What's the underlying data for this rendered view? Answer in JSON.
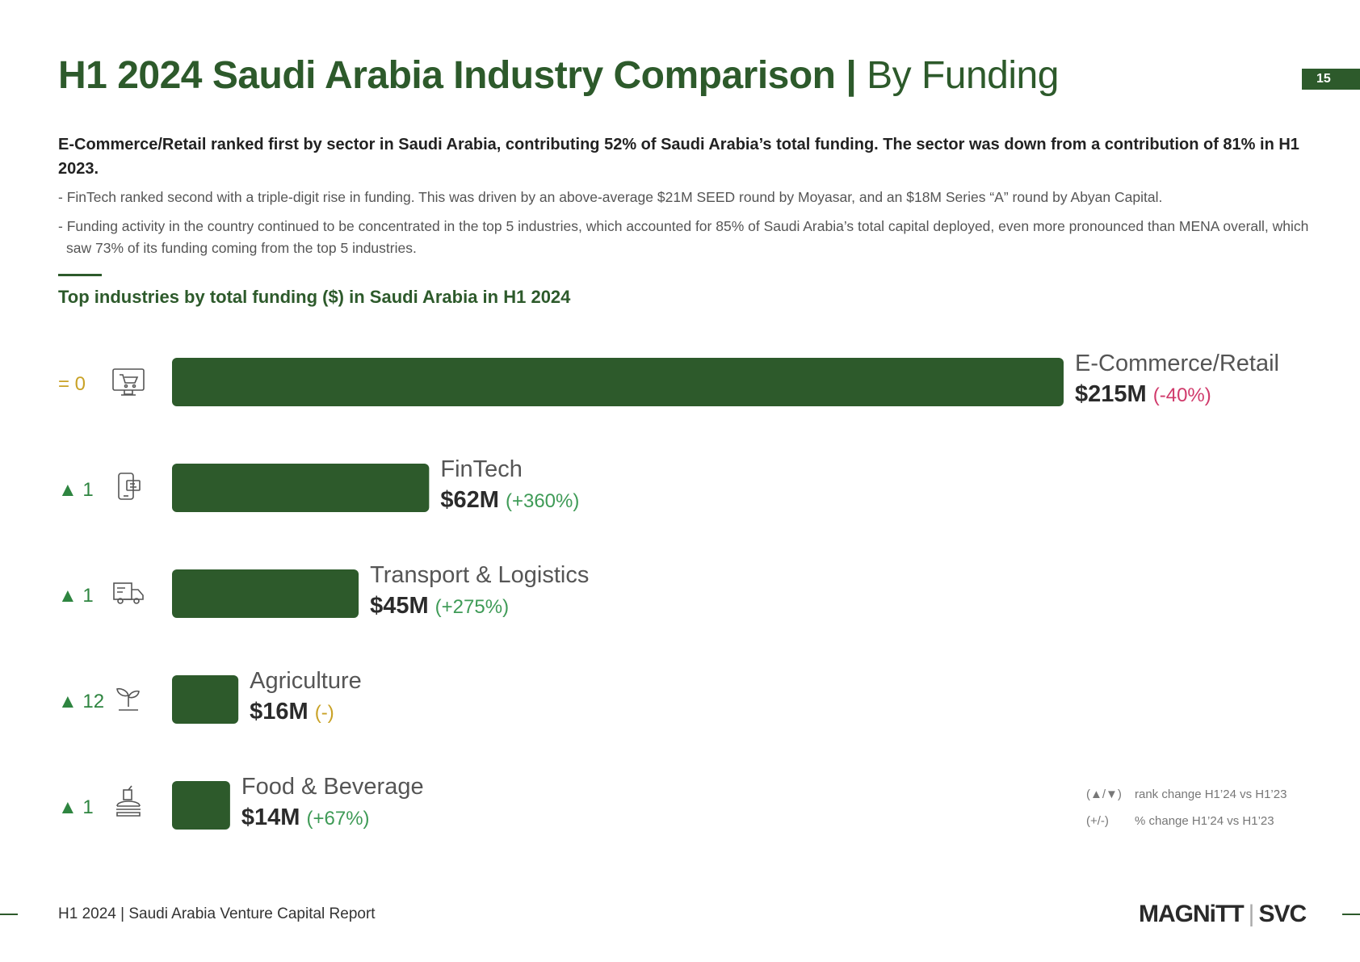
{
  "header": {
    "title_bold": "H1 2024 Saudi Arabia Industry Comparison | ",
    "title_light": "By Funding",
    "page_number": "15"
  },
  "summary": {
    "lead": "E-Commerce/Retail ranked first by sector in Saudi Arabia, contributing 52% of Saudi Arabia’s total funding. The sector was down from a contribution of 81% in H1 2023.",
    "bullets": [
      "- FinTech ranked second with a triple-digit rise in funding. This was driven by an above-average $21M SEED round by Moyasar, and an $18M Series “A” round by Abyan Capital.",
      "- Funding activity in the country continued to be concentrated in the top 5 industries, which accounted for 85% of Saudi Arabia’s total capital deployed, even more pronounced than MENA overall, which saw 73% of its funding coming from the top 5 industries."
    ]
  },
  "chart_title": "Top industries by total funding ($) in Saudi Arabia in H1 2024",
  "chart_data": {
    "type": "bar",
    "orientation": "horizontal",
    "unit": "$M",
    "categories": [
      "E-Commerce/Retail",
      "FinTech",
      "Transport & Logistics",
      "Agriculture",
      "Food & Beverage"
    ],
    "values": [
      215,
      62,
      45,
      16,
      14
    ],
    "value_labels": [
      "$215M",
      "$62M",
      "$45M",
      "$16M",
      "$14M"
    ],
    "change_labels": [
      "(-40%)",
      "(+360%)",
      "(+275%)",
      "(-)",
      "(+67%)"
    ],
    "rank_changes": [
      "= 0",
      "▲ 1",
      "▲ 1",
      "▲ 12",
      "▲ 1"
    ],
    "icons": [
      "shopping-cart-monitor-icon",
      "mobile-payment-icon",
      "delivery-truck-icon",
      "plant-sprout-icon",
      "food-burger-drink-icon"
    ],
    "xlim": [
      0,
      215
    ],
    "grid": false,
    "bar_color": "#2d5a2b",
    "colors": {
      "rank_neutral": "#c9a227",
      "rank_up": "#2e8540",
      "change_negative": "#d03a6b",
      "change_positive": "#3f9b57",
      "change_neutral": "#c9a227"
    }
  },
  "legend": {
    "rank_symbol": "(▲/▼)",
    "rank_text": "rank change H1’24 vs H1’23",
    "pct_symbol": "(+/-)",
    "pct_text": "% change H1’24 vs H1’23"
  },
  "footer": {
    "report_name": "H1 2024 | Saudi Arabia Venture Capital Report",
    "logo_left": "MAGNiTT",
    "logo_right": "SVC"
  }
}
